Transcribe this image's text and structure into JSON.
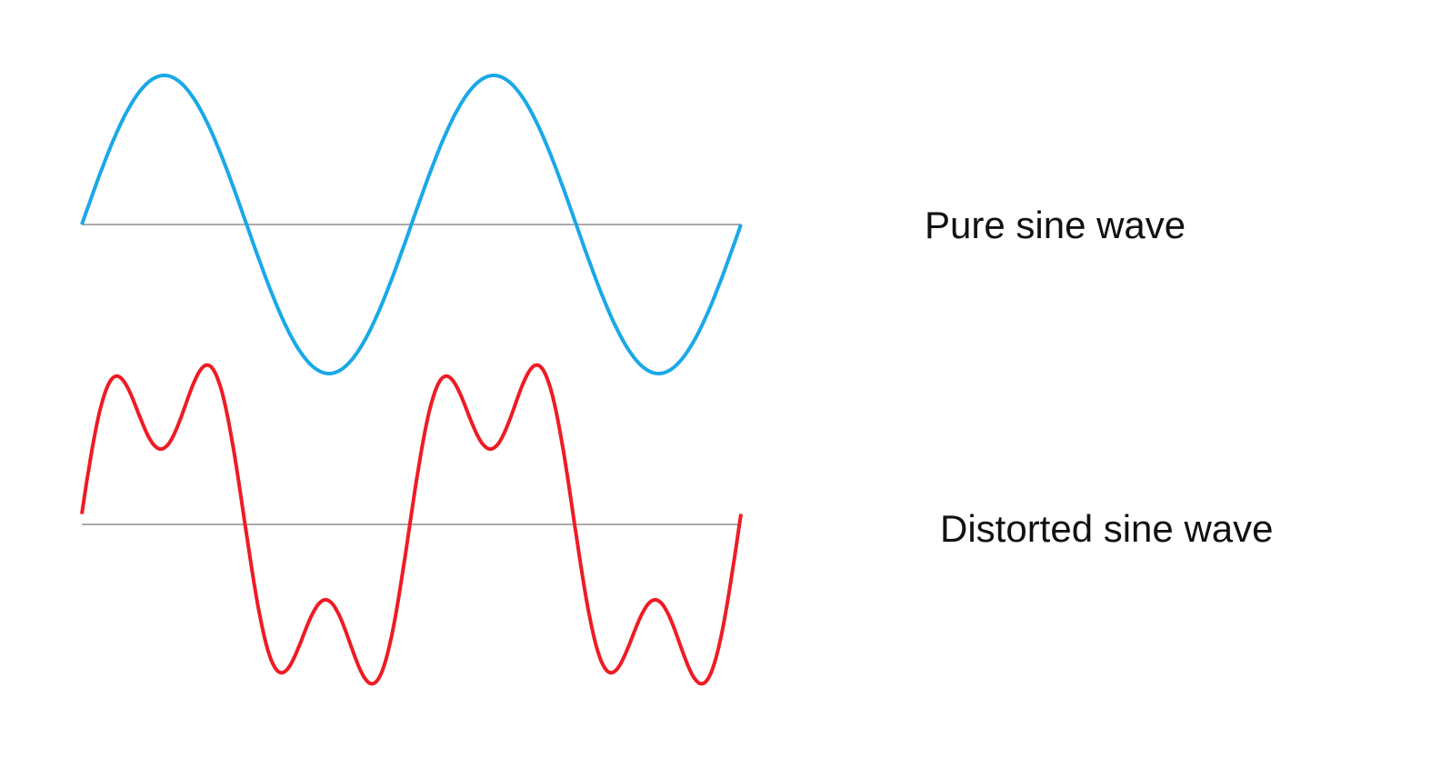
{
  "labels": {
    "pure": "Pure sine wave",
    "distorted": "Distorted sine wave"
  },
  "colors": {
    "pure": "#1aa8e8",
    "distorted": "#ee1c25",
    "axis": "#aaaaaa"
  },
  "chart_data": {
    "type": "line",
    "series": [
      {
        "name": "Pure sine wave",
        "cycles": 2,
        "harmonics": [
          {
            "order": 1,
            "amplitude": 1.0,
            "phase": 0
          }
        ]
      },
      {
        "name": "Distorted sine wave",
        "cycles": 2,
        "harmonics": [
          {
            "order": 1,
            "amplitude": 1.0,
            "phase": 0
          },
          {
            "order": 3,
            "amplitude": 0.48,
            "phase": 0.15
          }
        ]
      }
    ]
  }
}
